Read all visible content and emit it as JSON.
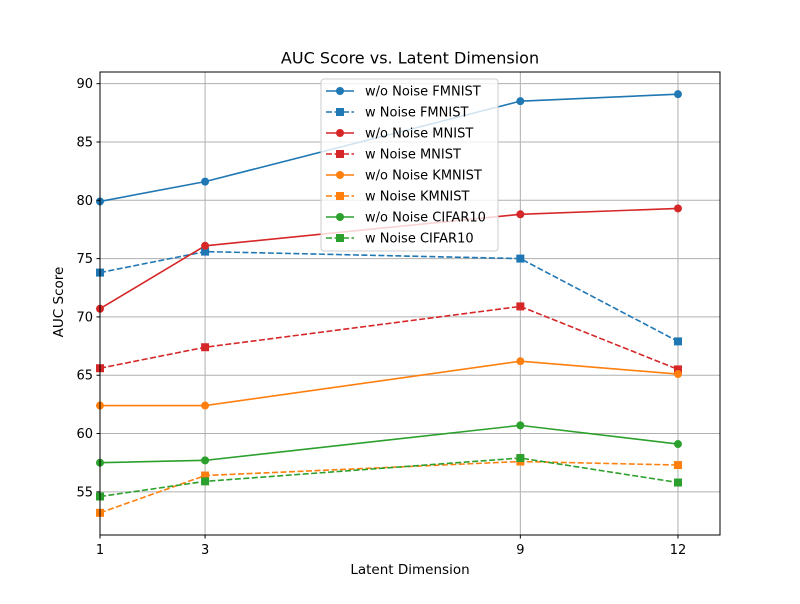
{
  "chart_data": {
    "type": "line",
    "title": "AUC Score vs. Latent Dimension",
    "xlabel": "Latent Dimension",
    "ylabel": "AUC Score",
    "x": [
      1,
      3,
      9,
      12
    ],
    "xlim": [
      1,
      12.8
    ],
    "ylim": [
      51.3,
      91.0
    ],
    "xticks": [
      "1",
      "3",
      "9",
      "12"
    ],
    "yticks": [
      55,
      60,
      65,
      70,
      75,
      80,
      85,
      90
    ],
    "grid": true,
    "legend_position": "upper-center",
    "series": [
      {
        "name": "w/o Noise FMNIST",
        "values": [
          79.9,
          81.6,
          88.5,
          89.1
        ],
        "color": "#1f77b4",
        "linestyle": "solid",
        "marker": "circle"
      },
      {
        "name": "w Noise FMNIST",
        "values": [
          73.8,
          75.6,
          75.0,
          67.9
        ],
        "color": "#1f77b4",
        "linestyle": "dashed",
        "marker": "square"
      },
      {
        "name": "w/o Noise MNIST",
        "values": [
          70.7,
          76.1,
          78.8,
          79.3
        ],
        "color": "#d62728",
        "linestyle": "solid",
        "marker": "circle"
      },
      {
        "name": "w Noise MNIST",
        "values": [
          65.6,
          67.4,
          70.9,
          65.5
        ],
        "color": "#d62728",
        "linestyle": "dashed",
        "marker": "square"
      },
      {
        "name": "w/o Noise KMNIST",
        "values": [
          62.4,
          62.4,
          66.2,
          65.1
        ],
        "color": "#ff7f0e",
        "linestyle": "solid",
        "marker": "circle"
      },
      {
        "name": "w Noise KMNIST",
        "values": [
          53.2,
          56.4,
          57.6,
          57.3
        ],
        "color": "#ff7f0e",
        "linestyle": "dashed",
        "marker": "square"
      },
      {
        "name": "w/o Noise CIFAR10",
        "values": [
          57.5,
          57.7,
          60.7,
          59.1
        ],
        "color": "#2ca02c",
        "linestyle": "solid",
        "marker": "circle"
      },
      {
        "name": "w Noise CIFAR10",
        "values": [
          54.6,
          55.9,
          57.9,
          55.8
        ],
        "color": "#2ca02c",
        "linestyle": "dashed",
        "marker": "square"
      }
    ]
  }
}
